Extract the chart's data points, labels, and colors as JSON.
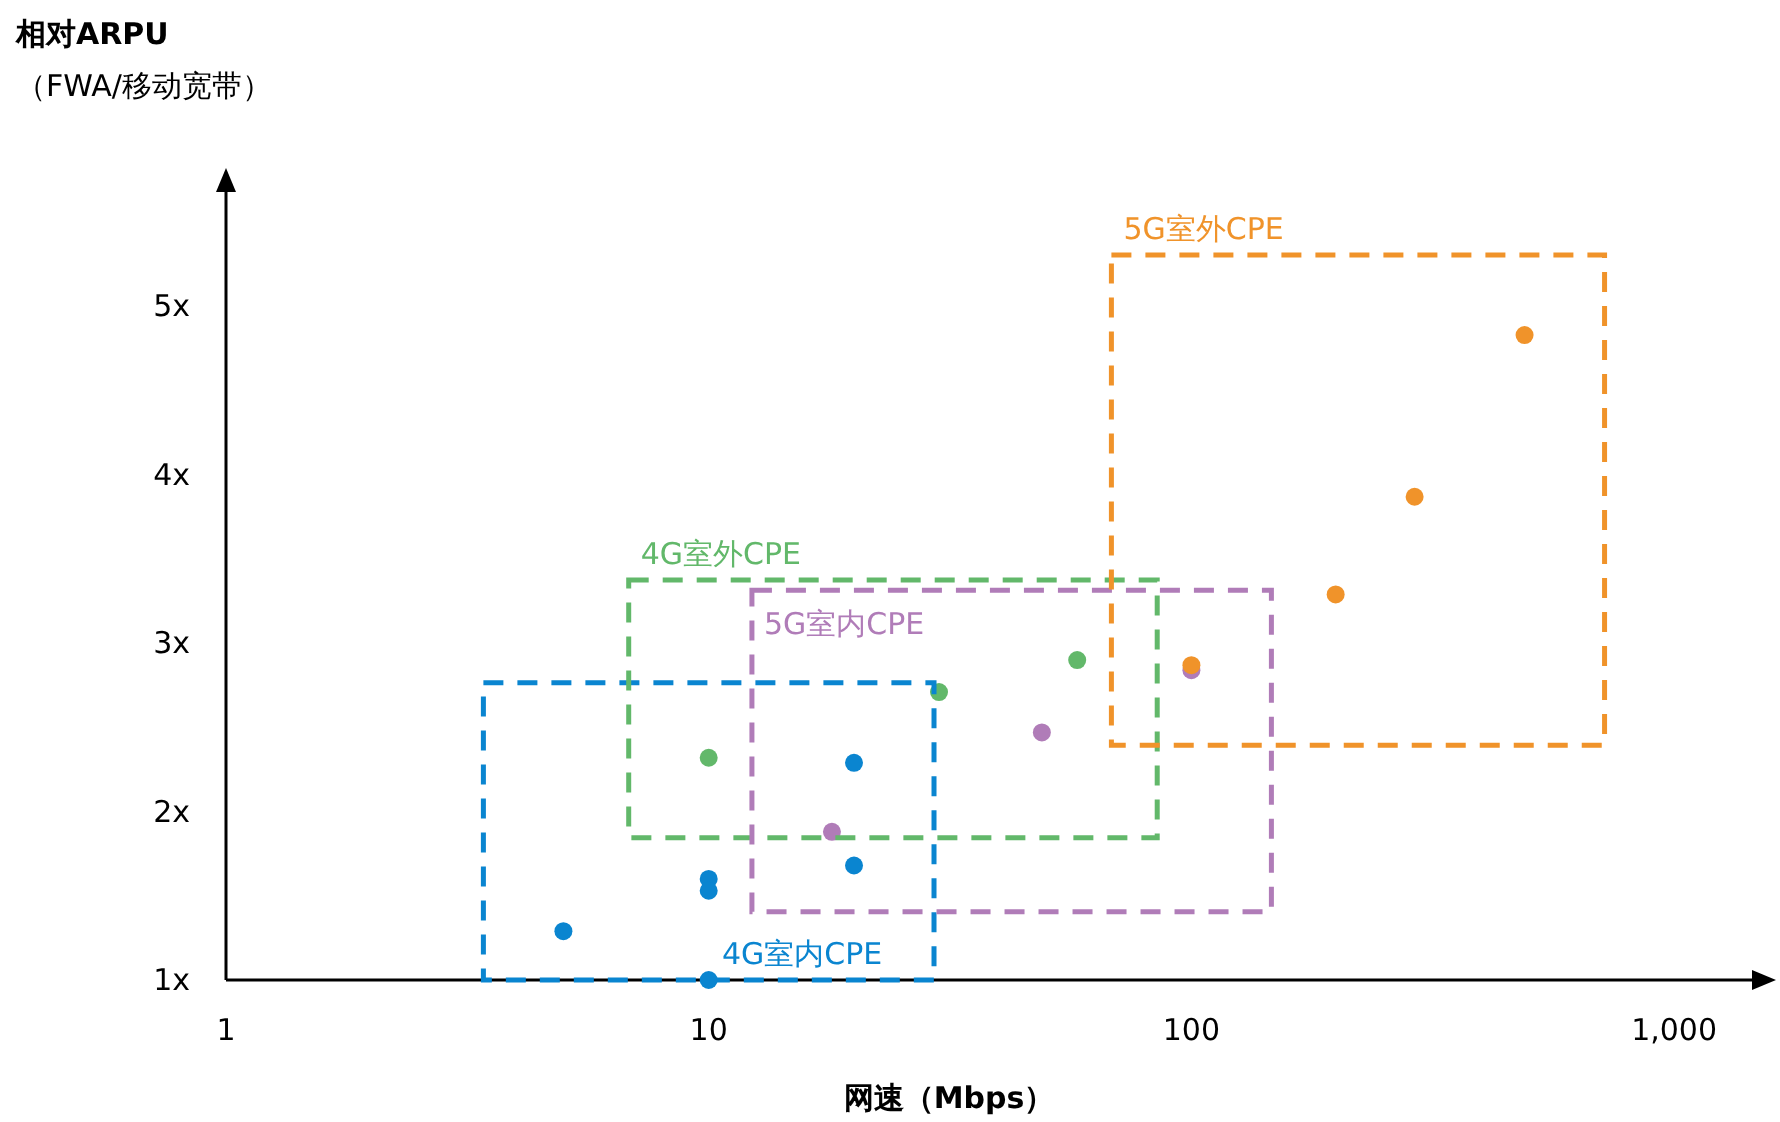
{
  "chart_data": {
    "type": "scatter",
    "xlabel": "网速（Mbps）",
    "ylabel": "**相对ARPU**（FWA/移动宽带）",
    "log": "x",
    "marker": "circle",
    "grid": false,
    "xlim": [
      1,
      1450
    ],
    "ylim": [
      1,
      5.68
    ],
    "xticks": [
      1,
      10,
      100,
      {
        "value": 1000,
        "label": "1,000"
      }
    ],
    "yticks": [
      {
        "value": 1,
        "label": "1x"
      },
      {
        "value": 2,
        "label": "2x"
      },
      {
        "value": 3,
        "label": "3x"
      },
      {
        "value": 4,
        "label": "4x"
      },
      {
        "value": 5,
        "label": "5x"
      }
    ],
    "series": [
      {
        "name": "4G室内CPE",
        "color": "#0a85d0",
        "x": [
          5,
          10,
          10,
          10,
          20,
          20
        ],
        "values": [
          1.29,
          1.6,
          1.53,
          1.0,
          2.29,
          1.68
        ]
      },
      {
        "name": "4G室外CPE",
        "color": "#62b86a",
        "x": [
          10,
          30,
          58
        ],
        "values": [
          2.32,
          2.71,
          2.9
        ]
      },
      {
        "name": "5G室内CPE",
        "color": "#b07cb8",
        "x": [
          18,
          49,
          100
        ],
        "values": [
          1.88,
          2.47,
          2.84
        ]
      },
      {
        "name": "5G室外CPE",
        "color": "#f0932a",
        "x": [
          100,
          199,
          290,
          490
        ],
        "values": [
          2.87,
          3.29,
          3.87,
          4.83
        ]
      }
    ]
  }
}
